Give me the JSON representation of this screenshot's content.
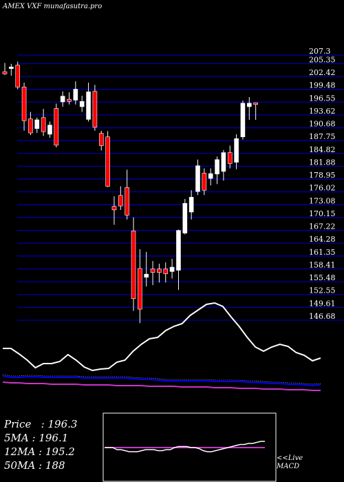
{
  "header": {
    "title": "AMEX  VXF munafasutra.pro"
  },
  "stats": {
    "price_label": "Price   :",
    "price_value": "196.3",
    "ma5_label": "5MA :",
    "ma5_value": "196.1",
    "ma12_label": "12MA :",
    "ma12_value": "195.2",
    "ma50_label": "50MA :",
    "ma50_value": "188"
  },
  "live": {
    "line1": "<<Live",
    "line2": "MACD"
  },
  "colors": {
    "up": "#ffffff",
    "down": "#ff0000",
    "grid": "#0000aa",
    "ma_short": "#0000ff",
    "ma_long": "#cc33cc",
    "osc": "#ffffff",
    "macd_box": "#ffffff"
  },
  "chart_data": {
    "type": "candlestick",
    "title": "AMEX  VXF munafasutra.pro",
    "y_ticks": [
      "207.3",
      "205.35",
      "202.42",
      "199.48",
      "196.55",
      "193.62",
      "190.68",
      "187.75",
      "184.82",
      "181.88",
      "178.95",
      "176.02",
      "173.08",
      "170.15",
      "167.22",
      "164.28",
      "161.35",
      "158.41",
      "155.48",
      "152.55",
      "149.61",
      "146.68"
    ],
    "ylim": [
      146.68,
      207.3
    ],
    "candles": [
      {
        "o": 203.5,
        "h": 205.5,
        "l": 202.8,
        "c": 203.0
      },
      {
        "o": 204.2,
        "h": 205.3,
        "l": 202.6,
        "c": 204.6
      },
      {
        "o": 205.0,
        "h": 205.8,
        "l": 199.5,
        "c": 200.0
      },
      {
        "o": 200.0,
        "h": 201.0,
        "l": 190.0,
        "c": 192.3
      },
      {
        "o": 192.7,
        "h": 194.3,
        "l": 189.0,
        "c": 189.5
      },
      {
        "o": 190.5,
        "h": 193.0,
        "l": 189.5,
        "c": 192.5
      },
      {
        "o": 193.0,
        "h": 195.0,
        "l": 188.8,
        "c": 189.8
      },
      {
        "o": 189.2,
        "h": 192.1,
        "l": 188.4,
        "c": 191.3
      },
      {
        "o": 195.1,
        "h": 196.2,
        "l": 186.2,
        "c": 186.7
      },
      {
        "o": 196.6,
        "h": 199.0,
        "l": 195.5,
        "c": 197.9
      },
      {
        "o": 197.2,
        "h": 198.8,
        "l": 196.0,
        "c": 196.7
      },
      {
        "o": 197.0,
        "h": 201.3,
        "l": 196.0,
        "c": 199.5
      },
      {
        "o": 195.5,
        "h": 198.0,
        "l": 194.3,
        "c": 196.7
      },
      {
        "o": 192.6,
        "h": 201.0,
        "l": 192.1,
        "c": 198.9
      },
      {
        "o": 199.0,
        "h": 200.5,
        "l": 190.0,
        "c": 190.8
      },
      {
        "o": 189.4,
        "h": 190.0,
        "l": 185.5,
        "c": 186.6
      },
      {
        "o": 188.6,
        "h": 189.9,
        "l": 177.1,
        "c": 177.3
      },
      {
        "o": 172.7,
        "h": 175.0,
        "l": 168.5,
        "c": 171.9
      },
      {
        "o": 175.2,
        "h": 177.3,
        "l": 171.9,
        "c": 172.8
      },
      {
        "o": 177.0,
        "h": 181.1,
        "l": 169.7,
        "c": 170.7
      },
      {
        "o": 167.1,
        "h": 170.2,
        "l": 148.8,
        "c": 151.6
      },
      {
        "o": 158.5,
        "h": 162.9,
        "l": 146.0,
        "c": 149.2
      },
      {
        "o": 156.5,
        "h": 162.3,
        "l": 154.4,
        "c": 157.2
      },
      {
        "o": 158.4,
        "h": 160.2,
        "l": 154.7,
        "c": 157.6
      },
      {
        "o": 158.4,
        "h": 159.6,
        "l": 155.3,
        "c": 157.6
      },
      {
        "o": 158.4,
        "h": 159.9,
        "l": 155.3,
        "c": 157.3
      },
      {
        "o": 157.8,
        "h": 160.7,
        "l": 156.2,
        "c": 158.8
      },
      {
        "o": 158.1,
        "h": 167.4,
        "l": 153.6,
        "c": 167.2
      },
      {
        "o": 166.6,
        "h": 174.4,
        "l": 166.3,
        "c": 173.4
      },
      {
        "o": 171.4,
        "h": 176.4,
        "l": 169.7,
        "c": 174.8
      },
      {
        "o": 176.1,
        "h": 183.4,
        "l": 175.3,
        "c": 182.0
      },
      {
        "o": 180.3,
        "h": 181.4,
        "l": 175.3,
        "c": 176.4
      },
      {
        "o": 179.1,
        "h": 181.4,
        "l": 177.5,
        "c": 180.2
      },
      {
        "o": 180.1,
        "h": 184.1,
        "l": 177.8,
        "c": 183.4
      },
      {
        "o": 180.7,
        "h": 185.6,
        "l": 178.6,
        "c": 185.0
      },
      {
        "o": 185.0,
        "h": 186.6,
        "l": 181.4,
        "c": 182.5
      },
      {
        "o": 182.8,
        "h": 189.2,
        "l": 181.2,
        "c": 188.2
      },
      {
        "o": 188.6,
        "h": 196.9,
        "l": 188.0,
        "c": 196.3
      },
      {
        "o": 195.5,
        "h": 197.7,
        "l": 192.5,
        "c": 196.3
      },
      {
        "o": 196.4,
        "h": 196.4,
        "l": 192.5,
        "c": 196.0
      }
    ],
    "ma_short": [
      154,
      152,
      152,
      153,
      153,
      152,
      152,
      152,
      152,
      152,
      151,
      151,
      151,
      151,
      151,
      151,
      150,
      149,
      149,
      148,
      147,
      147,
      147,
      147,
      147,
      147,
      146,
      146,
      146,
      146,
      145,
      145,
      144,
      143,
      143,
      142,
      142,
      141,
      140,
      141
    ],
    "ma_long": [
      145,
      144,
      144,
      143,
      143,
      143,
      142,
      142,
      142,
      142,
      141,
      141,
      141,
      141,
      140,
      140,
      140,
      140,
      139,
      139,
      139,
      139,
      138,
      138,
      138,
      138,
      137,
      137,
      137,
      136,
      136,
      136,
      135,
      135,
      135,
      134,
      134,
      134,
      133,
      133
    ],
    "osc": [
      134,
      134,
      126,
      117,
      106,
      112,
      112,
      115,
      125,
      117,
      107,
      102,
      104,
      105,
      114,
      117,
      130,
      140,
      148,
      150,
      160,
      166,
      170,
      182,
      190,
      198,
      200,
      195,
      180,
      166,
      150,
      136,
      130,
      136,
      140,
      137,
      128,
      124,
      116,
      120
    ],
    "macd_signal": [
      0.0,
      0.0,
      0.0,
      0.0,
      0.0,
      0.0,
      0.0,
      0.0,
      0.0,
      0.0,
      0.0,
      0.0,
      0.0,
      0.0,
      0.0,
      0.0,
      0.0,
      0.0,
      0.0,
      0.0,
      0.0,
      0.0,
      0.0,
      0.0,
      0.0,
      0.0,
      0.0,
      0.0,
      0.0,
      0.0,
      0.0,
      0.0,
      0.0,
      0.0,
      0.0,
      0.0,
      0.0,
      0.0,
      0.0,
      0.0
    ],
    "macd_line": [
      0.0,
      0.0,
      0.0,
      -1.0,
      -1.0,
      -1.5,
      -2.0,
      -2.0,
      -2.0,
      -1.5,
      -1.0,
      -1.0,
      -1.0,
      -1.5,
      -1.5,
      -1.0,
      -1.0,
      0.0,
      0.5,
      0.5,
      0.5,
      0.0,
      0.0,
      -0.5,
      -1.5,
      -2.0,
      -2.0,
      -1.5,
      -1.0,
      -0.5,
      0.0,
      0.5,
      1.0,
      1.5,
      1.5,
      2.0,
      2.0,
      2.5,
      3.0,
      3.0
    ]
  }
}
